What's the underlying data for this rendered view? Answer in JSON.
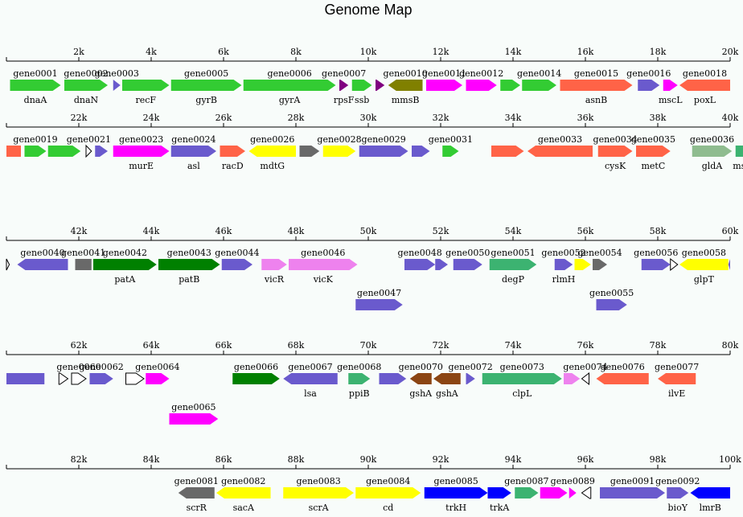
{
  "title": "Genome Map",
  "genome_length": 100000,
  "row_length": 20000,
  "tick_step": 2000,
  "colors": {
    "green": "#33cc33",
    "magenta": "#ff00ff",
    "slate": "#6a5acd",
    "coral": "#ff6347",
    "olive": "#808000",
    "purple": "#800080",
    "gray": "#696969",
    "yellow": "#ffff00",
    "sea": "#3cb371",
    "sage": "#8fbc8f",
    "dkgreen": "#008000",
    "violet": "#ee82ee",
    "brown": "#8b4513",
    "blue": "#0000ff",
    "white": "#ffffff"
  },
  "rows": [
    {
      "ticks": [
        "2k",
        "4k",
        "6k",
        "8k",
        "10k",
        "12k",
        "14k",
        "16k",
        "18k",
        "20k"
      ],
      "genes": [
        {
          "start": 100,
          "end": 1500,
          "strand": 1,
          "lane": 0,
          "color": "green",
          "id": "gene0001",
          "name": "dnaA"
        },
        {
          "start": 1600,
          "end": 2800,
          "strand": 1,
          "lane": 0,
          "color": "green",
          "id": "gene0002",
          "name": "dnaN"
        },
        {
          "start": 2950,
          "end": 3150,
          "strand": 1,
          "lane": 0,
          "color": "slate",
          "id": "gene0003",
          "name": ""
        },
        {
          "start": 3200,
          "end": 4500,
          "strand": 1,
          "lane": 0,
          "color": "green",
          "id": "",
          "name": "recF"
        },
        {
          "start": 4550,
          "end": 6500,
          "strand": 1,
          "lane": 0,
          "color": "green",
          "id": "gene0005",
          "name": "gyrB"
        },
        {
          "start": 6550,
          "end": 9100,
          "strand": 1,
          "lane": 0,
          "color": "green",
          "id": "gene0006",
          "name": "gyrA"
        },
        {
          "start": 9200,
          "end": 9450,
          "strand": 1,
          "lane": 0,
          "color": "purple",
          "id": "gene0007",
          "name": "rpsF"
        },
        {
          "start": 9550,
          "end": 10100,
          "strand": 1,
          "lane": 0,
          "color": "green",
          "id": "",
          "name": "ssb"
        },
        {
          "start": 10200,
          "end": 10450,
          "strand": 1,
          "lane": 0,
          "color": "purple",
          "id": "",
          "name": ""
        },
        {
          "start": 10550,
          "end": 11500,
          "strand": -1,
          "lane": 0,
          "color": "olive",
          "id": "gene0010",
          "name": "mmsB"
        },
        {
          "start": 11600,
          "end": 12600,
          "strand": 1,
          "lane": 0,
          "color": "magenta",
          "id": "gene0011",
          "name": ""
        },
        {
          "start": 12700,
          "end": 13550,
          "strand": 1,
          "lane": 0,
          "color": "magenta",
          "id": "gene0012",
          "name": ""
        },
        {
          "start": 13650,
          "end": 14200,
          "strand": 1,
          "lane": 0,
          "color": "green",
          "id": "",
          "name": ""
        },
        {
          "start": 14250,
          "end": 15200,
          "strand": 1,
          "lane": 0,
          "color": "green",
          "id": "gene0014",
          "name": ""
        },
        {
          "start": 15300,
          "end": 17300,
          "strand": 1,
          "lane": 0,
          "color": "coral",
          "id": "gene0015",
          "name": "asnB"
        },
        {
          "start": 17450,
          "end": 18050,
          "strand": 1,
          "lane": 0,
          "color": "slate",
          "id": "gene0016",
          "name": ""
        },
        {
          "start": 18150,
          "end": 18550,
          "strand": 1,
          "lane": 0,
          "color": "magenta",
          "id": "",
          "name": "mscL"
        },
        {
          "start": 18600,
          "end": 20000,
          "strand": -1,
          "lane": 0,
          "color": "coral",
          "id": "gene0018",
          "name": "poxL"
        }
      ]
    },
    {
      "ticks": [
        "22k",
        "24k",
        "26k",
        "28k",
        "30k",
        "32k",
        "34k",
        "36k",
        "38k",
        "40k"
      ],
      "genes": [
        {
          "start": 20000,
          "end": 20400,
          "strand": 0,
          "lane": 0,
          "color": "coral",
          "id": "",
          "name": ""
        },
        {
          "start": 20500,
          "end": 21100,
          "strand": 1,
          "lane": 0,
          "color": "green",
          "id": "gene0019",
          "name": ""
        },
        {
          "start": 21150,
          "end": 22050,
          "strand": 1,
          "lane": 0,
          "color": "green",
          "id": "",
          "name": ""
        },
        {
          "start": 22200,
          "end": 22350,
          "strand": 1,
          "lane": 0,
          "color": "white",
          "id": "gene0021",
          "name": ""
        },
        {
          "start": 22450,
          "end": 22800,
          "strand": 1,
          "lane": 0,
          "color": "slate",
          "id": "",
          "name": ""
        },
        {
          "start": 22950,
          "end": 24500,
          "strand": 1,
          "lane": 0,
          "color": "magenta",
          "id": "gene0023",
          "name": "murE"
        },
        {
          "start": 24550,
          "end": 25800,
          "strand": 1,
          "lane": 0,
          "color": "slate",
          "id": "gene0024",
          "name": "asl"
        },
        {
          "start": 25900,
          "end": 26600,
          "strand": 1,
          "lane": 0,
          "color": "coral",
          "id": "",
          "name": "racD"
        },
        {
          "start": 26700,
          "end": 28000,
          "strand": -1,
          "lane": 0,
          "color": "yellow",
          "id": "gene0026",
          "name": "mdtG"
        },
        {
          "start": 28100,
          "end": 28650,
          "strand": 1,
          "lane": 0,
          "color": "gray",
          "id": "",
          "name": ""
        },
        {
          "start": 28750,
          "end": 29650,
          "strand": 1,
          "lane": 0,
          "color": "yellow",
          "id": "gene0028",
          "name": ""
        },
        {
          "start": 29750,
          "end": 31100,
          "strand": 1,
          "lane": 0,
          "color": "slate",
          "id": "gene0029",
          "name": ""
        },
        {
          "start": 31200,
          "end": 31700,
          "strand": 1,
          "lane": 0,
          "color": "slate",
          "id": "",
          "name": ""
        },
        {
          "start": 32050,
          "end": 32500,
          "strand": 1,
          "lane": 0,
          "color": "green",
          "id": "gene0031",
          "name": ""
        },
        {
          "start": 33400,
          "end": 34300,
          "strand": 1,
          "lane": 0,
          "color": "coral",
          "id": "",
          "name": ""
        },
        {
          "start": 34400,
          "end": 36200,
          "strand": -1,
          "lane": 0,
          "color": "coral",
          "id": "gene0033",
          "name": ""
        },
        {
          "start": 36350,
          "end": 37300,
          "strand": 1,
          "lane": 0,
          "color": "coral",
          "id": "gene0034",
          "name": "cysK"
        },
        {
          "start": 37400,
          "end": 38350,
          "strand": 1,
          "lane": 0,
          "color": "coral",
          "id": "gene0035",
          "name": "metC"
        },
        {
          "start": 38950,
          "end": 40050,
          "strand": 1,
          "lane": 0,
          "color": "sage",
          "id": "gene0036",
          "name": "gldA"
        },
        {
          "start": 40150,
          "end": 40650,
          "strand": 1,
          "lane": 0,
          "color": "sea",
          "id": "",
          "name": "msrB"
        },
        {
          "start": 40800,
          "end": 41050,
          "strand": 1,
          "lane": 0,
          "color": "slate",
          "id": "",
          "name": ""
        },
        {
          "start": 40820,
          "end": 40960,
          "strand": 1,
          "lane": 1,
          "color": "white",
          "id": "",
          "name": ""
        }
      ]
    },
    {
      "ticks": [
        "42k",
        "44k",
        "46k",
        "48k",
        "50k",
        "52k",
        "54k",
        "56k",
        "58k",
        "60k"
      ],
      "genes": [
        {
          "start": 40000,
          "end": 40080,
          "strand": 1,
          "lane": 0,
          "color": "white",
          "id": "",
          "name": ""
        },
        {
          "start": 40300,
          "end": 41700,
          "strand": -1,
          "lane": 0,
          "color": "slate",
          "id": "gene0040",
          "name": ""
        },
        {
          "start": 41900,
          "end": 42350,
          "strand": 0,
          "lane": 0,
          "color": "gray",
          "id": "gene0041",
          "name": ""
        },
        {
          "start": 42400,
          "end": 44150,
          "strand": 1,
          "lane": 0,
          "color": "dkgreen",
          "id": "gene0042",
          "name": "patA"
        },
        {
          "start": 44200,
          "end": 45900,
          "strand": 1,
          "lane": 0,
          "color": "dkgreen",
          "id": "gene0043",
          "name": "patB"
        },
        {
          "start": 45950,
          "end": 46800,
          "strand": 1,
          "lane": 0,
          "color": "slate",
          "id": "gene0044",
          "name": ""
        },
        {
          "start": 47050,
          "end": 47750,
          "strand": 1,
          "lane": 0,
          "color": "violet",
          "id": "",
          "name": "vicR"
        },
        {
          "start": 47800,
          "end": 49700,
          "strand": 1,
          "lane": 0,
          "color": "violet",
          "id": "gene0046",
          "name": "vicK"
        },
        {
          "start": 49650,
          "end": 50950,
          "strand": 1,
          "lane": 1,
          "color": "slate",
          "id": "gene0047",
          "name": ""
        },
        {
          "start": 51000,
          "end": 51850,
          "strand": 1,
          "lane": 0,
          "color": "slate",
          "id": "gene0048",
          "name": ""
        },
        {
          "start": 51850,
          "end": 52200,
          "strand": 1,
          "lane": 0,
          "color": "slate",
          "id": "",
          "name": ""
        },
        {
          "start": 52350,
          "end": 53150,
          "strand": 1,
          "lane": 0,
          "color": "slate",
          "id": "gene0050",
          "name": ""
        },
        {
          "start": 53350,
          "end": 54650,
          "strand": 1,
          "lane": 0,
          "color": "sea",
          "id": "gene0051",
          "name": "degP"
        },
        {
          "start": 55150,
          "end": 55650,
          "strand": 1,
          "lane": 0,
          "color": "slate",
          "id": "gene0052",
          "name": "rlmH"
        },
        {
          "start": 55700,
          "end": 56150,
          "strand": 1,
          "lane": 0,
          "color": "yellow",
          "id": "",
          "name": ""
        },
        {
          "start": 56200,
          "end": 56600,
          "strand": 1,
          "lane": 0,
          "color": "gray",
          "id": "gene0054",
          "name": ""
        },
        {
          "start": 56300,
          "end": 57150,
          "strand": 1,
          "lane": 1,
          "color": "slate",
          "id": "gene0055",
          "name": ""
        },
        {
          "start": 57550,
          "end": 58350,
          "strand": 1,
          "lane": 0,
          "color": "slate",
          "id": "gene0056",
          "name": ""
        },
        {
          "start": 58350,
          "end": 58550,
          "strand": 1,
          "lane": 0,
          "color": "white",
          "id": "",
          "name": ""
        },
        {
          "start": 58600,
          "end": 59950,
          "strand": -1,
          "lane": 0,
          "color": "yellow",
          "id": "gene0058",
          "name": "glpT"
        },
        {
          "start": 59950,
          "end": 60000,
          "strand": -1,
          "lane": 0,
          "color": "slate",
          "id": "",
          "name": ""
        }
      ]
    },
    {
      "ticks": [
        "62k",
        "64k",
        "66k",
        "68k",
        "70k",
        "72k",
        "74k",
        "76k",
        "78k",
        "80k"
      ],
      "genes": [
        {
          "start": 60000,
          "end": 61050,
          "strand": 0,
          "lane": 0,
          "color": "slate",
          "id": "",
          "name": ""
        },
        {
          "start": 61450,
          "end": 61700,
          "strand": 1,
          "lane": 0,
          "color": "white",
          "id": "",
          "name": ""
        },
        {
          "start": 61800,
          "end": 62200,
          "strand": 1,
          "lane": 0,
          "color": "white",
          "id": "gene0060",
          "name": ""
        },
        {
          "start": 62300,
          "end": 62950,
          "strand": 1,
          "lane": 0,
          "color": "slate",
          "id": "gene0062",
          "name": ""
        },
        {
          "start": 63300,
          "end": 63800,
          "strand": 1,
          "lane": 0,
          "color": "white",
          "id": "",
          "name": ""
        },
        {
          "start": 63850,
          "end": 64500,
          "strand": 1,
          "lane": 0,
          "color": "magenta",
          "id": "gene0064",
          "name": ""
        },
        {
          "start": 64500,
          "end": 65850,
          "strand": 1,
          "lane": 1,
          "color": "magenta",
          "id": "gene0065",
          "name": ""
        },
        {
          "start": 66250,
          "end": 67550,
          "strand": 1,
          "lane": 0,
          "color": "dkgreen",
          "id": "gene0066",
          "name": ""
        },
        {
          "start": 67650,
          "end": 69150,
          "strand": -1,
          "lane": 0,
          "color": "slate",
          "id": "gene0067",
          "name": "lsa"
        },
        {
          "start": 69450,
          "end": 70050,
          "strand": 1,
          "lane": 0,
          "color": "sea",
          "id": "gene0068",
          "name": "ppiB"
        },
        {
          "start": 70300,
          "end": 71050,
          "strand": 1,
          "lane": 0,
          "color": "slate",
          "id": "",
          "name": ""
        },
        {
          "start": 71150,
          "end": 71750,
          "strand": -1,
          "lane": 0,
          "color": "brown",
          "id": "gene0070",
          "name": "gshA"
        },
        {
          "start": 71800,
          "end": 72550,
          "strand": -1,
          "lane": 0,
          "color": "brown",
          "id": "",
          "name": "gshA"
        },
        {
          "start": 72700,
          "end": 72950,
          "strand": 1,
          "lane": 0,
          "color": "slate",
          "id": "gene0072",
          "name": ""
        },
        {
          "start": 73150,
          "end": 75350,
          "strand": 1,
          "lane": 0,
          "color": "sea",
          "id": "gene0073",
          "name": "clpL"
        },
        {
          "start": 75400,
          "end": 75850,
          "strand": 1,
          "lane": 0,
          "color": "violet",
          "id": "",
          "name": ""
        },
        {
          "start": 75900,
          "end": 76100,
          "strand": -1,
          "lane": 0,
          "color": "white",
          "id": "gene0074",
          "name": ""
        },
        {
          "start": 76300,
          "end": 77750,
          "strand": -1,
          "lane": 0,
          "color": "coral",
          "id": "gene0076",
          "name": ""
        },
        {
          "start": 78000,
          "end": 79050,
          "strand": -1,
          "lane": 0,
          "color": "coral",
          "id": "gene0077",
          "name": "ilvE"
        }
      ]
    },
    {
      "ticks": [
        "82k",
        "84k",
        "86k",
        "88k",
        "90k",
        "92k",
        "94k",
        "96k",
        "98k",
        "100k"
      ],
      "genes": [
        {
          "start": 84750,
          "end": 85750,
          "strand": -1,
          "lane": 0,
          "color": "gray",
          "id": "gene0081",
          "name": "scrR"
        },
        {
          "start": 85800,
          "end": 87300,
          "strand": -1,
          "lane": 0,
          "color": "yellow",
          "id": "gene0082",
          "name": "sacA"
        },
        {
          "start": 87650,
          "end": 89600,
          "strand": 1,
          "lane": 0,
          "color": "yellow",
          "id": "gene0083",
          "name": "scrA"
        },
        {
          "start": 89650,
          "end": 91450,
          "strand": 1,
          "lane": 0,
          "color": "yellow",
          "id": "gene0084",
          "name": "cd"
        },
        {
          "start": 91550,
          "end": 93300,
          "strand": 1,
          "lane": 0,
          "color": "blue",
          "id": "gene0085",
          "name": "trkH"
        },
        {
          "start": 93300,
          "end": 93950,
          "strand": 1,
          "lane": 0,
          "color": "blue",
          "id": "",
          "name": "trkA"
        },
        {
          "start": 94050,
          "end": 94700,
          "strand": 1,
          "lane": 0,
          "color": "sea",
          "id": "gene0087",
          "name": ""
        },
        {
          "start": 94750,
          "end": 95500,
          "strand": 1,
          "lane": 0,
          "color": "magenta",
          "id": "",
          "name": ""
        },
        {
          "start": 95550,
          "end": 95750,
          "strand": 1,
          "lane": 0,
          "color": "magenta",
          "id": "gene0089",
          "name": ""
        },
        {
          "start": 95900,
          "end": 96150,
          "strand": -1,
          "lane": 0,
          "color": "white",
          "id": "",
          "name": ""
        },
        {
          "start": 96400,
          "end": 98200,
          "strand": 1,
          "lane": 0,
          "color": "slate",
          "id": "gene0091",
          "name": ""
        },
        {
          "start": 98250,
          "end": 98850,
          "strand": 1,
          "lane": 0,
          "color": "slate",
          "id": "gene0092",
          "name": "bioY"
        },
        {
          "start": 98900,
          "end": 100000,
          "strand": -1,
          "lane": 0,
          "color": "blue",
          "id": "",
          "name": "lmrB"
        }
      ]
    }
  ]
}
